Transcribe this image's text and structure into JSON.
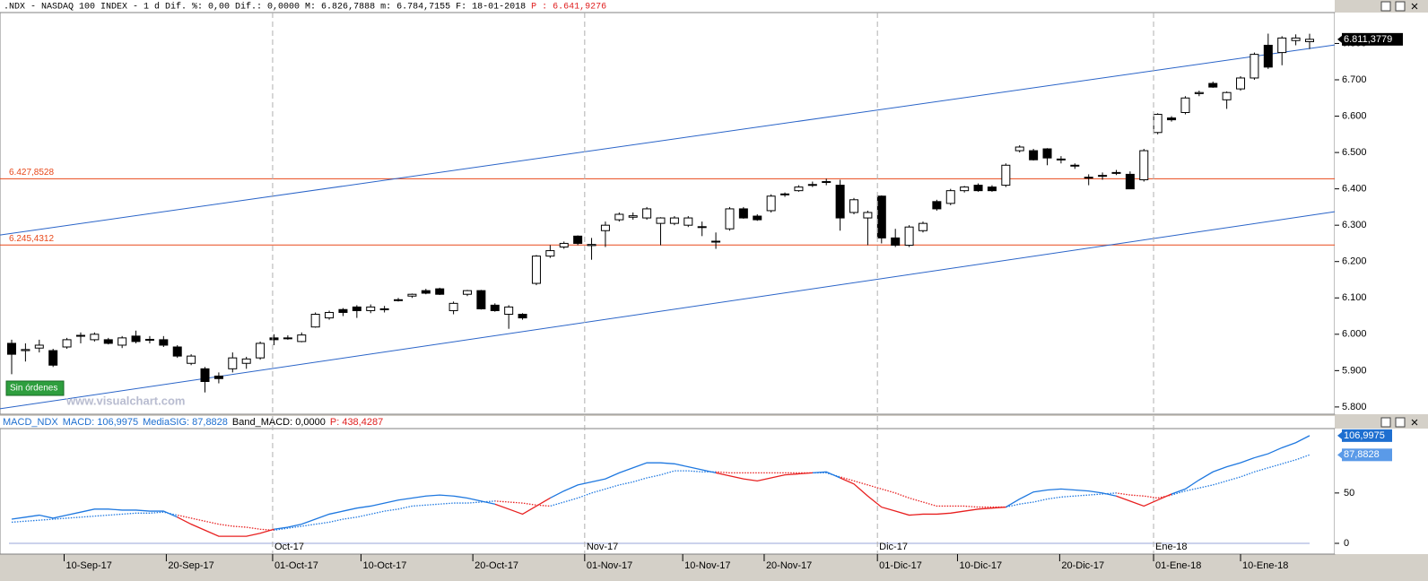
{
  "chart_data": [
    {
      "type": "candlestick",
      "title": ".NDX - NASDAQ 100 INDEX -  1 d Dif. %: 0,00 Dif.: 0,0000 M: 6.826,7888 m: 6.784,7155 F: 18-01-2018",
      "subtitle": "P : 6.641,9276",
      "open": [
        5975,
        5955,
        5962,
        5955,
        5965,
        5995,
        5985,
        5985,
        5970,
        5995,
        5984,
        5985,
        5965,
        5920,
        5905,
        5885,
        5905,
        5920,
        5935,
        5990,
        5988,
        5980,
        6020,
        6045,
        6068,
        6075,
        6065,
        6068,
        6093,
        6105,
        6120,
        6125,
        6065,
        6110,
        6120,
        6080,
        6055,
        6055,
        6140,
        6215,
        6240,
        6270,
        6244,
        6285,
        6315,
        6322,
        6320,
        6305,
        6305,
        6300,
        6296,
        6255,
        6290,
        6345,
        6325,
        6340,
        6385,
        6395,
        6410,
        6420,
        6410,
        6335,
        6320,
        6380,
        6265,
        6245,
        6285,
        6365,
        6360,
        6395,
        6410,
        6405,
        6410,
        6505,
        6505,
        6510,
        6480,
        6465,
        6430,
        6435,
        6445,
        6440,
        6425,
        6555,
        6595,
        6610,
        6662,
        6690,
        6645,
        6675,
        6705,
        6795,
        6775,
        6808,
        6805
      ],
      "high": [
        5985,
        5975,
        5985,
        5960,
        5990,
        6005,
        6005,
        5990,
        5995,
        6010,
        5995,
        5995,
        5970,
        5945,
        5910,
        5895,
        5950,
        5938,
        5980,
        6000,
        5997,
        6005,
        6060,
        6065,
        6072,
        6080,
        6082,
        6078,
        6100,
        6112,
        6125,
        6128,
        6090,
        6122,
        6122,
        6085,
        6080,
        6058,
        6218,
        6245,
        6255,
        6272,
        6265,
        6310,
        6335,
        6335,
        6350,
        6322,
        6325,
        6325,
        6310,
        6280,
        6350,
        6350,
        6330,
        6385,
        6390,
        6410,
        6420,
        6428,
        6425,
        6375,
        6340,
        6382,
        6290,
        6300,
        6310,
        6370,
        6400,
        6408,
        6415,
        6410,
        6470,
        6520,
        6510,
        6512,
        6490,
        6470,
        6440,
        6445,
        6452,
        6448,
        6510,
        6608,
        6600,
        6655,
        6670,
        6695,
        6668,
        6710,
        6775,
        6827,
        6820,
        6825,
        6826.7888
      ],
      "low": [
        5890,
        5925,
        5950,
        5910,
        5960,
        5975,
        5980,
        5972,
        5962,
        5975,
        5975,
        5965,
        5935,
        5915,
        5840,
        5865,
        5895,
        5905,
        5930,
        5970,
        5985,
        5978,
        6018,
        6040,
        6050,
        6045,
        6058,
        6060,
        6090,
        6100,
        6110,
        6108,
        6055,
        6105,
        6068,
        6062,
        6015,
        6040,
        6135,
        6210,
        6235,
        6245,
        6205,
        6240,
        6310,
        6315,
        6315,
        6245,
        6300,
        6295,
        6270,
        6235,
        6285,
        6318,
        6312,
        6335,
        6378,
        6392,
        6405,
        6410,
        6285,
        6330,
        6245,
        6250,
        6240,
        6240,
        6280,
        6340,
        6355,
        6390,
        6392,
        6392,
        6405,
        6500,
        6478,
        6465,
        6470,
        6455,
        6410,
        6425,
        6438,
        6400,
        6420,
        6550,
        6585,
        6605,
        6655,
        6678,
        6620,
        6670,
        6700,
        6730,
        6740,
        6795,
        6784.7155
      ],
      "close": [
        5945,
        5958,
        5970,
        5915,
        5985,
        5997,
        6000,
        5975,
        5990,
        5980,
        5986,
        5970,
        5940,
        5940,
        5870,
        5878,
        5935,
        5932,
        5975,
        5985,
        5990,
        5998,
        6055,
        6060,
        6060,
        6065,
        6075,
        6070,
        6095,
        6110,
        6113,
        6110,
        6085,
        6120,
        6070,
        6065,
        6075,
        6045,
        6215,
        6230,
        6250,
        6250,
        6247,
        6300,
        6330,
        6326,
        6345,
        6320,
        6320,
        6320,
        6294,
        6256,
        6345,
        6320,
        6315,
        6380,
        6386,
        6405,
        6412,
        6418,
        6320,
        6370,
        6335,
        6265,
        6245,
        6295,
        6305,
        6345,
        6395,
        6405,
        6395,
        6395,
        6465,
        6515,
        6480,
        6485,
        6482,
        6464,
        6432,
        6437,
        6443,
        6400,
        6505,
        6605,
        6590,
        6650,
        6665,
        6680,
        6665,
        6705,
        6770,
        6735,
        6815,
        6815,
        6811.3779
      ],
      "up_color": "#ffffff",
      "down_color": "#000000",
      "ylim": [
        5780,
        6885
      ],
      "yticks": [
        {
          "value": 5800,
          "label": "5.800"
        },
        {
          "value": 5900,
          "label": "5.900"
        },
        {
          "value": 6000,
          "label": "6.000"
        },
        {
          "value": 6100,
          "label": "6.100"
        },
        {
          "value": 6200,
          "label": "6.200"
        },
        {
          "value": 6300,
          "label": "6.300"
        },
        {
          "value": 6400,
          "label": "6.400"
        },
        {
          "value": 6500,
          "label": "6.500"
        },
        {
          "value": 6600,
          "label": "6.600"
        },
        {
          "value": 6700,
          "label": "6.700"
        },
        {
          "value": 6800,
          "label": "6.800"
        }
      ],
      "levels": [
        {
          "value": 6427.8528,
          "label": "6.427,8528"
        },
        {
          "value": 6245.4312,
          "label": "6.245,4312"
        }
      ],
      "level_color": "#e8481a",
      "trendlines": [
        {
          "start": 6273,
          "end": 6796
        },
        {
          "start": 5795,
          "end": 6337
        }
      ],
      "trend_color": "#2a64c8",
      "price_marker": {
        "value": 6811.3779,
        "label": "6.811,3779"
      },
      "badge": "Sin órdenes",
      "watermark": "www.visualchart.com"
    },
    {
      "type": "line",
      "title": "MACD_NDX",
      "info": [
        {
          "text": "MACD: 106,9975",
          "color": "#1e6fd0"
        },
        {
          "text": "MediaSIG: 87,8828",
          "color": "#1e6fd0"
        },
        {
          "text": "Band_MACD: 0,0000",
          "color": "#000000"
        },
        {
          "text": "P: 438,4287",
          "color": "#e02020"
        }
      ],
      "series": [
        {
          "color": "#1e78e0",
          "down_color": "#e82020",
          "style": "solid",
          "last_label": "106,9975",
          "values": [
            24,
            26,
            28,
            25,
            28,
            31,
            34,
            34,
            33,
            33,
            32,
            32,
            26,
            19,
            13,
            7,
            7,
            7,
            10,
            14,
            16,
            19,
            24,
            29,
            32,
            35,
            37,
            40,
            43,
            45,
            47,
            48,
            47,
            45,
            42,
            39,
            34,
            29,
            37,
            45,
            52,
            58,
            61,
            64,
            70,
            75,
            80,
            80,
            79,
            76,
            73,
            70,
            67,
            64,
            62,
            65,
            68,
            69,
            70,
            71,
            65,
            59,
            47,
            36,
            32,
            28,
            29,
            29,
            30,
            32,
            34,
            35,
            36,
            44,
            51,
            53,
            54,
            53,
            52,
            50,
            47,
            42,
            37,
            43,
            49,
            54,
            63,
            71,
            76,
            80,
            85,
            89,
            95,
            100,
            106.9975
          ]
        },
        {
          "color": "#1e78e0",
          "down_color": "#e82020",
          "style": "dotted",
          "last_label": "87,8828",
          "values": [
            21,
            22,
            23,
            24,
            25,
            26,
            27,
            28,
            29,
            30,
            30,
            31,
            28,
            25,
            22,
            19,
            17,
            16,
            14,
            13,
            15,
            17,
            19,
            21,
            24,
            26,
            29,
            32,
            34,
            37,
            38,
            39,
            40,
            40,
            41,
            42,
            41,
            40,
            38,
            37,
            41,
            45,
            50,
            54,
            58,
            61,
            65,
            68,
            72,
            72,
            71,
            71,
            70,
            70,
            70,
            70,
            70,
            70,
            70,
            70,
            66,
            62,
            58,
            54,
            50,
            45,
            41,
            37,
            37,
            37,
            36,
            36,
            36,
            39,
            41,
            44,
            46,
            47,
            48,
            49,
            50,
            48,
            47,
            45,
            48,
            52,
            55,
            58,
            62,
            66,
            71,
            75,
            79,
            83,
            87.8828
          ]
        }
      ],
      "ylim": [
        -10.7,
        114
      ],
      "yticks": [
        0,
        50
      ],
      "xticks": [
        {
          "value": 3.8,
          "label": "10-Sep-17"
        },
        {
          "value": 11.2,
          "label": "20-Sep-17"
        },
        {
          "value": 18.9,
          "label": "01-Oct-17"
        },
        {
          "value": 25.3,
          "label": "10-Oct-17"
        },
        {
          "value": 33.4,
          "label": "20-Oct-17"
        },
        {
          "value": 41.5,
          "label": "01-Nov-17"
        },
        {
          "value": 48.6,
          "label": "10-Nov-17"
        },
        {
          "value": 54.5,
          "label": "20-Nov-17"
        },
        {
          "value": 62.7,
          "label": "01-Dic-17"
        },
        {
          "value": 68.5,
          "label": "10-Dic-17"
        },
        {
          "value": 75.9,
          "label": "20-Dic-17"
        },
        {
          "value": 82.7,
          "label": "01-Ene-18"
        },
        {
          "value": 89,
          "label": "10-Ene-18"
        }
      ],
      "month_ticks": [
        {
          "value": 18.9,
          "label": "Oct-17"
        },
        {
          "value": 41.5,
          "label": "Nov-17"
        },
        {
          "value": 62.7,
          "label": "Dic-17"
        },
        {
          "value": 82.7,
          "label": "Ene-18"
        }
      ]
    }
  ]
}
